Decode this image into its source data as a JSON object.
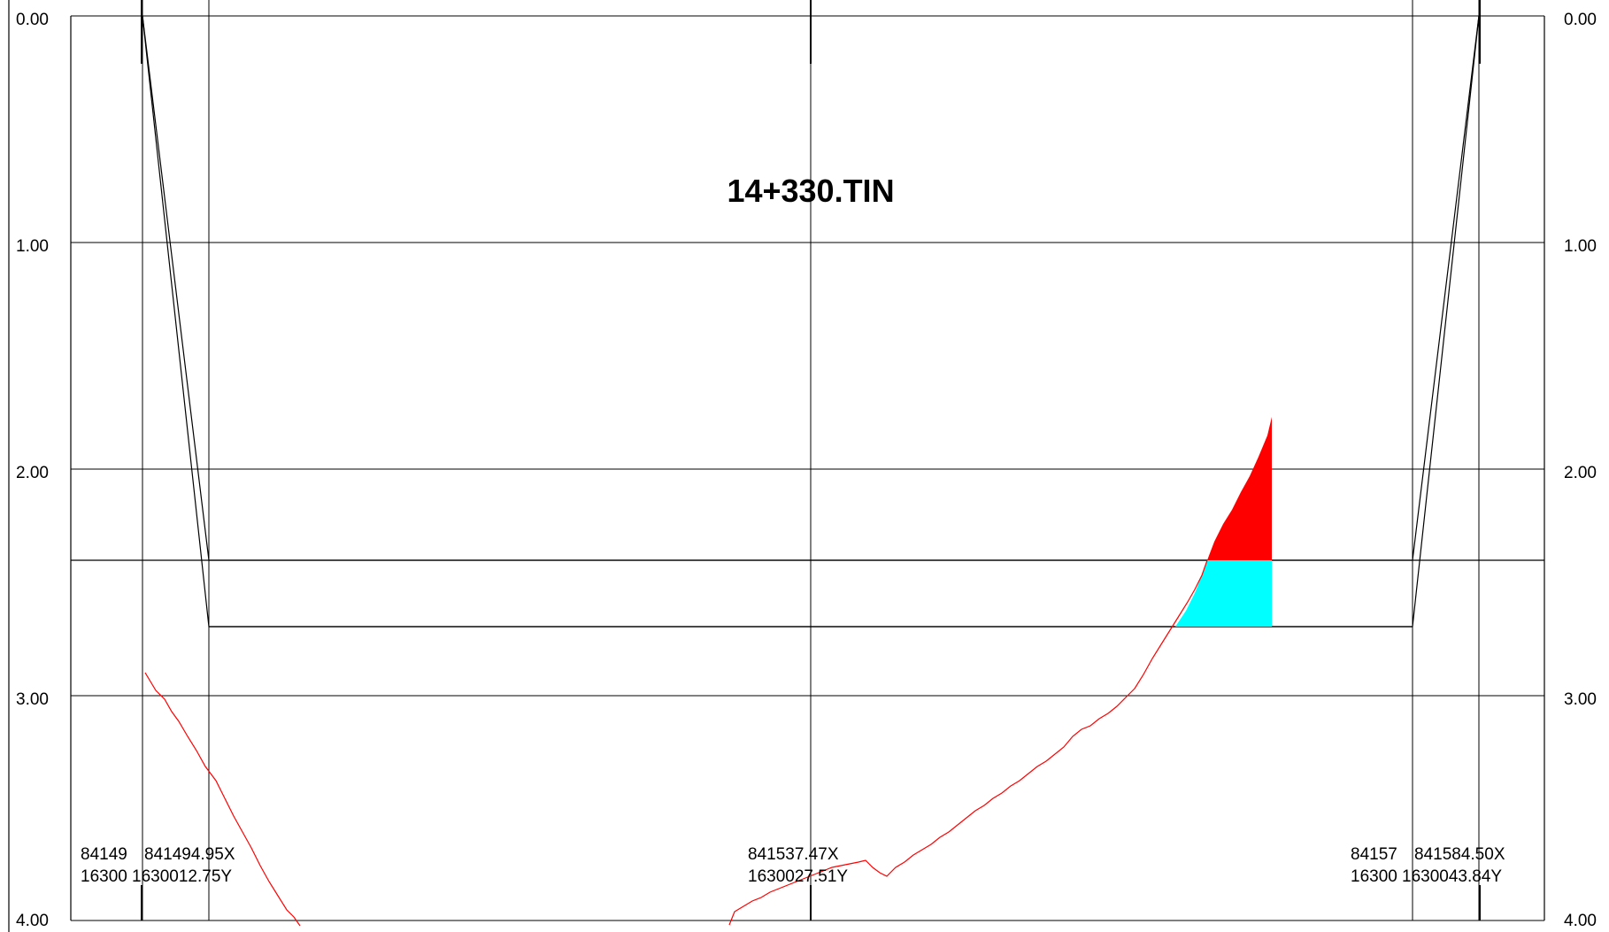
{
  "title": "14+330.TIN",
  "y_axis": {
    "ticks": [
      "0.00",
      "1.00",
      "2.00",
      "3.00",
      "4.00"
    ]
  },
  "coordinate_labels": {
    "left": {
      "x_truncated": "84149",
      "x": "841494.95X",
      "y_truncated": "16300",
      "y": "1630012.75Y"
    },
    "center": {
      "x": "841537.47X",
      "y": "1630027.51Y"
    },
    "right": {
      "x_truncated": "84157",
      "x": "841584.50X",
      "y_truncated": "16300",
      "y": "1630043.84Y"
    }
  },
  "colors": {
    "ground_line": "#ff0000",
    "fill_area": "#ff0000",
    "cut_area": "#00ffff",
    "lines": "#000000"
  }
}
